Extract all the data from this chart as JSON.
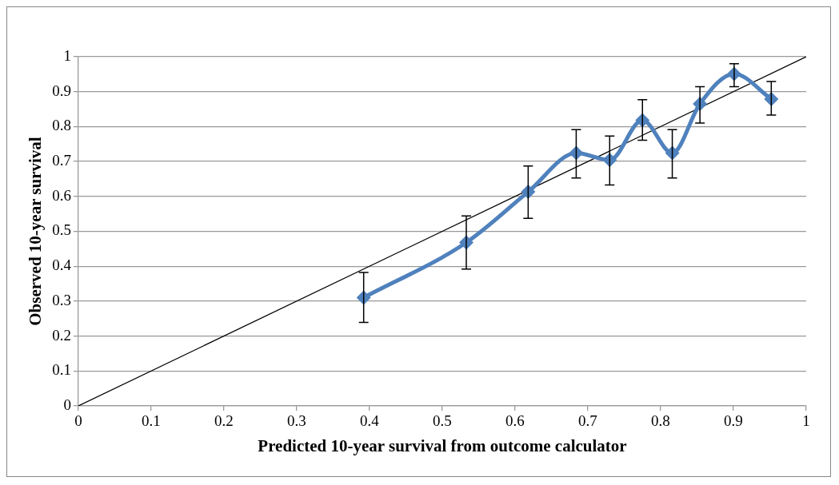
{
  "chart_data": {
    "type": "line",
    "xlabel": "Predicted 10-year survival from outcome calculator",
    "ylabel": "Observed 10-year survival",
    "xlim": [
      0,
      1
    ],
    "xticks": [
      0,
      0.1,
      0.2,
      0.3,
      0.4,
      0.5,
      0.6,
      0.7,
      0.8,
      0.9,
      1
    ],
    "ylim": [
      0,
      1
    ],
    "yticks": [
      0,
      0.1,
      0.2,
      0.3,
      0.4,
      0.5,
      0.6,
      0.7,
      0.8,
      0.9,
      1
    ],
    "grid": "y",
    "legend": false,
    "series": [
      {
        "type": "line",
        "color": "#4f81bd",
        "marker": "diamond",
        "x": [
          0.392,
          0.533,
          0.618,
          0.684,
          0.73,
          0.775,
          0.816,
          0.854,
          0.901,
          0.952
        ],
        "values": [
          0.31,
          0.468,
          0.613,
          0.724,
          0.704,
          0.818,
          0.724,
          0.865,
          0.951,
          0.879
        ],
        "errors": [
          [
            0.239,
            0.382
          ],
          [
            0.392,
            0.544
          ],
          [
            0.537,
            0.687
          ],
          [
            0.653,
            0.791
          ],
          [
            0.633,
            0.773
          ],
          [
            0.761,
            0.877
          ],
          [
            0.653,
            0.791
          ],
          [
            0.81,
            0.914
          ],
          [
            0.914,
            0.98
          ],
          [
            0.833,
            0.929
          ]
        ]
      },
      {
        "type": "line",
        "color": "#000000",
        "marker": "none",
        "x": [
          0,
          1
        ],
        "values": [
          0,
          1
        ]
      }
    ]
  }
}
